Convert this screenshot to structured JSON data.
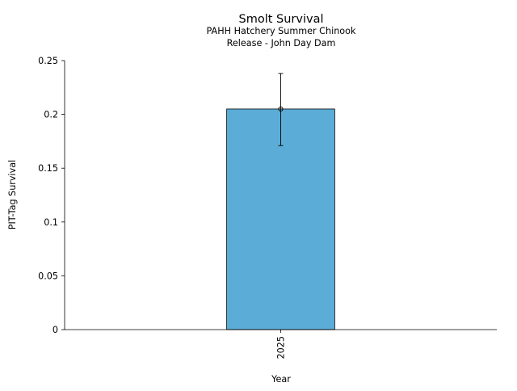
{
  "chart_data": {
    "type": "bar",
    "title": "Smolt Survival",
    "subtitle_lines": [
      "PAHH Hatchery Summer Chinook",
      "Release - John Day Dam"
    ],
    "xlabel": "Year",
    "ylabel": "PIT-Tag Survival",
    "categories": [
      "2025"
    ],
    "values": [
      0.205
    ],
    "error_bars": [
      {
        "lower": 0.171,
        "upper": 0.238
      }
    ],
    "ylim": [
      0,
      0.25
    ],
    "yticks": [
      0,
      0.05,
      0.1,
      0.15,
      0.2,
      0.25
    ],
    "ytick_labels": [
      "0",
      "0.05",
      "0.1",
      "0.15",
      "0.2",
      "0.25"
    ],
    "grid": false,
    "legend": "none",
    "colors": {
      "bar_fill": "#5bacd6",
      "bar_edge": "#000000",
      "error_bar": "#000000"
    }
  }
}
